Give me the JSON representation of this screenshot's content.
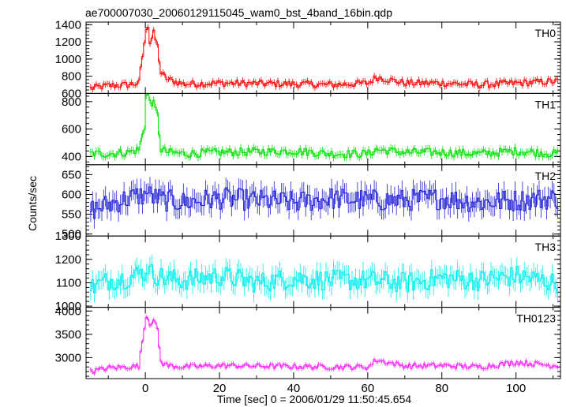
{
  "chart_data": {
    "type": "line",
    "title": "ae700007030_20060129115045_wam0_bst_4band_16bin.qdp",
    "xlabel": "Time [sec] 0 = 2006/01/29 11:50:45.654",
    "ylabel": "Counts/sec",
    "xlim": [
      -16,
      112
    ],
    "xticks": [
      "0",
      "20",
      "40",
      "60",
      "80",
      "100"
    ],
    "series": [
      {
        "name": "TH0",
        "color": "#ff0000",
        "ylim": [
          600,
          1430
        ],
        "yticks": [
          "600",
          "800",
          "1000",
          "1200",
          "1400"
        ],
        "base": 710,
        "noise": 40,
        "bump": 590,
        "spike": 750,
        "echo": 70,
        "x": [
          -15,
          -10,
          -5,
          -2,
          0,
          0.5,
          2,
          3,
          4,
          6,
          10,
          20,
          40,
          50,
          60,
          62,
          70,
          80,
          90,
          100,
          110
        ],
        "y": [
          660,
          690,
          700,
          720,
          1350,
          1130,
          1300,
          1150,
          830,
          760,
          710,
          720,
          710,
          700,
          720,
          790,
          720,
          720,
          700,
          720,
          740
        ]
      },
      {
        "name": "TH1",
        "color": "#00e000",
        "ylim": [
          340,
          860
        ],
        "yticks": [
          "400",
          "600",
          "800"
        ],
        "base": 420,
        "noise": 30,
        "bump": 350,
        "spike": 450,
        "echo": 30,
        "x": [
          -15,
          -10,
          -5,
          -2,
          0,
          0.5,
          2,
          3,
          4,
          6,
          10,
          20,
          40,
          50,
          60,
          62,
          70,
          80,
          90,
          100,
          110
        ],
        "y": [
          420,
          420,
          430,
          450,
          660,
          830,
          780,
          700,
          450,
          430,
          420,
          430,
          440,
          420,
          420,
          450,
          430,
          430,
          420,
          440,
          420
        ]
      },
      {
        "name": "TH2",
        "color": "#2020d8",
        "ylim": [
          495,
          675
        ],
        "yticks": [
          "500",
          "550",
          "600",
          "650"
        ],
        "base": 585,
        "noise": 28,
        "bump": 15,
        "spike": 20,
        "echo": 0,
        "x": [
          -15,
          -10,
          -5,
          0,
          5,
          10,
          20,
          30,
          40,
          50,
          60,
          70,
          80,
          90,
          100,
          110
        ],
        "y": [
          560,
          575,
          590,
          600,
          585,
          580,
          590,
          585,
          580,
          590,
          585,
          585,
          590,
          580,
          585,
          590
        ]
      },
      {
        "name": "TH3",
        "color": "#00eeee",
        "ylim": [
          995,
          1300
        ],
        "yticks": [
          "1000",
          "1100",
          "1200",
          "1300"
        ],
        "base": 1115,
        "noise": 45,
        "bump": 20,
        "spike": 30,
        "echo": 0,
        "x": [
          -15,
          -10,
          -5,
          0,
          5,
          10,
          20,
          30,
          40,
          50,
          60,
          70,
          80,
          90,
          100,
          110
        ],
        "y": [
          1080,
          1110,
          1120,
          1150,
          1120,
          1110,
          1130,
          1100,
          1120,
          1110,
          1110,
          1100,
          1120,
          1110,
          1130,
          1100
        ]
      },
      {
        "name": "TH0123",
        "color": "#ff20ff",
        "ylim": [
          2550,
          4080
        ],
        "yticks": [
          "3000",
          "3500",
          "4000"
        ],
        "base": 2800,
        "noise": 55,
        "bump": 1000,
        "spike": 1150,
        "echo": 120,
        "x": [
          -15,
          -10,
          -5,
          -2,
          0,
          0.5,
          2,
          3,
          4,
          6,
          10,
          20,
          40,
          50,
          60,
          62,
          70,
          80,
          90,
          100,
          110
        ],
        "y": [
          2700,
          2780,
          2800,
          2820,
          3900,
          3700,
          3800,
          3600,
          2900,
          2830,
          2800,
          2830,
          2810,
          2800,
          2800,
          2950,
          2820,
          2830,
          2800,
          2900,
          2830
        ]
      }
    ]
  }
}
